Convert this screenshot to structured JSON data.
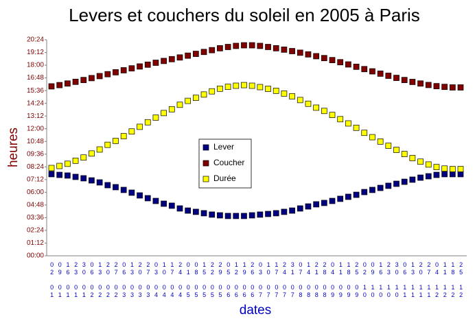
{
  "chart_data": {
    "type": "scatter",
    "title": "Levers et couchers du soleil en 2005 à Paris",
    "y_label": "heures",
    "x_label": "dates",
    "categories": [
      "02 01",
      "09 01",
      "16 01",
      "23 01",
      "30 01",
      "06 02",
      "13 02",
      "20 02",
      "27 02",
      "06 03",
      "13 03",
      "20 03",
      "27 03",
      "03 04",
      "10 04",
      "17 04",
      "24 04",
      "01 05",
      "08 05",
      "15 05",
      "22 05",
      "29 05",
      "05 06",
      "12 06",
      "19 06",
      "26 06",
      "03 07",
      "10 07",
      "17 07",
      "24 07",
      "31 07",
      "07 08",
      "14 08",
      "21 08",
      "28 08",
      "04 09",
      "11 09",
      "18 09",
      "25 09",
      "02 10",
      "09 10",
      "16 10",
      "23 10",
      "30 10",
      "06 11",
      "13 11",
      "20 11",
      "27 11",
      "04 12",
      "11 12",
      "18 12",
      "25 12"
    ],
    "series": [
      {
        "name": "Lever",
        "color": "#000080",
        "values": [
          7.71,
          7.64,
          7.58,
          7.45,
          7.32,
          7.12,
          6.93,
          6.67,
          6.48,
          6.22,
          5.96,
          5.7,
          5.44,
          5.18,
          4.92,
          4.73,
          4.47,
          4.27,
          4.15,
          4.02,
          3.89,
          3.82,
          3.76,
          3.76,
          3.76,
          3.82,
          3.89,
          3.95,
          4.02,
          4.15,
          4.27,
          4.47,
          4.66,
          4.86,
          4.99,
          5.18,
          5.38,
          5.57,
          5.76,
          6.02,
          6.22,
          6.41,
          6.61,
          6.8,
          6.99,
          7.19,
          7.38,
          7.51,
          7.64,
          7.71,
          7.71,
          7.71
        ]
      },
      {
        "name": "Coucher",
        "color": "#800000",
        "values": [
          16.0,
          16.12,
          16.27,
          16.43,
          16.6,
          16.78,
          16.97,
          17.15,
          17.33,
          17.52,
          17.7,
          17.88,
          18.05,
          18.23,
          18.4,
          18.57,
          18.73,
          18.9,
          19.07,
          19.25,
          19.42,
          19.6,
          19.72,
          19.82,
          19.88,
          19.88,
          19.82,
          19.72,
          19.6,
          19.47,
          19.33,
          19.18,
          19.02,
          18.85,
          18.67,
          18.48,
          18.28,
          18.07,
          17.85,
          17.63,
          17.42,
          17.2,
          17.0,
          16.8,
          16.6,
          16.42,
          16.27,
          16.13,
          16.02,
          15.95,
          15.9,
          15.9
        ]
      },
      {
        "name": "Durée",
        "color": "#ffff00",
        "values": [
          8.29,
          8.48,
          8.69,
          8.98,
          9.28,
          9.66,
          10.04,
          10.48,
          10.85,
          11.3,
          11.74,
          12.18,
          12.61,
          13.05,
          13.48,
          13.84,
          14.26,
          14.63,
          14.92,
          15.23,
          15.53,
          15.78,
          15.96,
          16.06,
          16.12,
          16.06,
          15.93,
          15.77,
          15.58,
          15.32,
          15.06,
          14.71,
          14.36,
          13.99,
          13.68,
          13.3,
          12.9,
          12.5,
          12.09,
          11.61,
          11.2,
          10.79,
          10.39,
          10.0,
          9.61,
          9.23,
          8.89,
          8.62,
          8.38,
          8.24,
          8.19,
          8.19
        ]
      }
    ],
    "ylim": [
      0,
      20.4
    ],
    "yticks": [
      {
        "value": 0,
        "label": "00:00"
      },
      {
        "value": 1.2,
        "label": "01:12"
      },
      {
        "value": 2.4,
        "label": "02:24"
      },
      {
        "value": 3.6,
        "label": "03:36"
      },
      {
        "value": 4.8,
        "label": "04:48"
      },
      {
        "value": 6,
        "label": "06:00"
      },
      {
        "value": 7.2,
        "label": "07:12"
      },
      {
        "value": 8.4,
        "label": "08:24"
      },
      {
        "value": 9.6,
        "label": "09:36"
      },
      {
        "value": 10.8,
        "label": "10:48"
      },
      {
        "value": 12,
        "label": "12:00"
      },
      {
        "value": 13.2,
        "label": "13:12"
      },
      {
        "value": 14.4,
        "label": "14:24"
      },
      {
        "value": 15.6,
        "label": "15:36"
      },
      {
        "value": 16.8,
        "label": "16:48"
      },
      {
        "value": 18,
        "label": "18:00"
      },
      {
        "value": 19.2,
        "label": "19:12"
      },
      {
        "value": 20.4,
        "label": "20:24"
      }
    ],
    "legend": "center",
    "grid": false
  }
}
